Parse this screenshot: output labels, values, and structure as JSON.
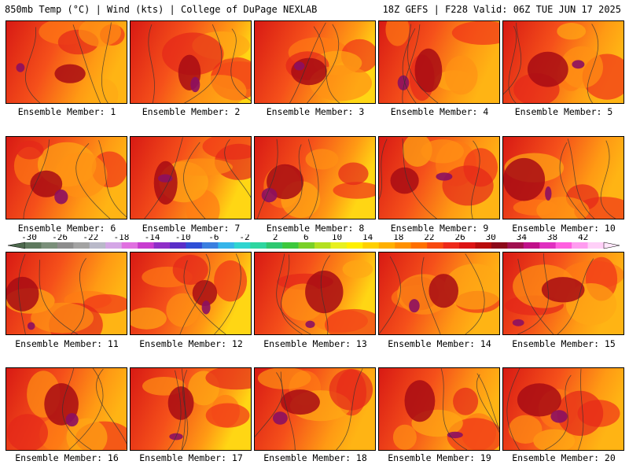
{
  "header": {
    "left": "850mb Temp (°C) | Wind (kts) | College of DuPage NEXLAB",
    "right": "18Z GEFS | F228 Valid: 06Z TUE JUN 17 2025"
  },
  "panel_label_prefix": "Ensemble Member: ",
  "members": [
    1,
    2,
    3,
    4,
    5,
    6,
    7,
    8,
    9,
    10,
    11,
    12,
    13,
    14,
    15,
    16,
    17,
    18,
    19,
    20
  ],
  "colorbar": {
    "labels": [
      "-30",
      "-26",
      "-22",
      "-18",
      "-14",
      "-10",
      "-6",
      "-2",
      "2",
      "6",
      "10",
      "14",
      "18",
      "22",
      "26",
      "30",
      "34",
      "38",
      "42"
    ],
    "colors": [
      "#5f7a5f",
      "#7a8f7a",
      "#8d8d8d",
      "#a3a3a3",
      "#b9b9c9",
      "#d4a6e6",
      "#e070e0",
      "#c83cd0",
      "#8f2fc8",
      "#5a2ec8",
      "#2f4fd6",
      "#3a7fe0",
      "#35b5ea",
      "#30d5d0",
      "#2ed6a0",
      "#2ec870",
      "#3cc83c",
      "#7ad028",
      "#b4e020",
      "#e8f020",
      "#fff000",
      "#ffd000",
      "#ffb000",
      "#ff9000",
      "#ff7000",
      "#f84a10",
      "#ee2a1a",
      "#dc1414",
      "#b80c0c",
      "#8c0a1a",
      "#a01050",
      "#c0108a",
      "#e030c0",
      "#ff60e0",
      "#ff9cf0",
      "#ffd0f8"
    ]
  }
}
